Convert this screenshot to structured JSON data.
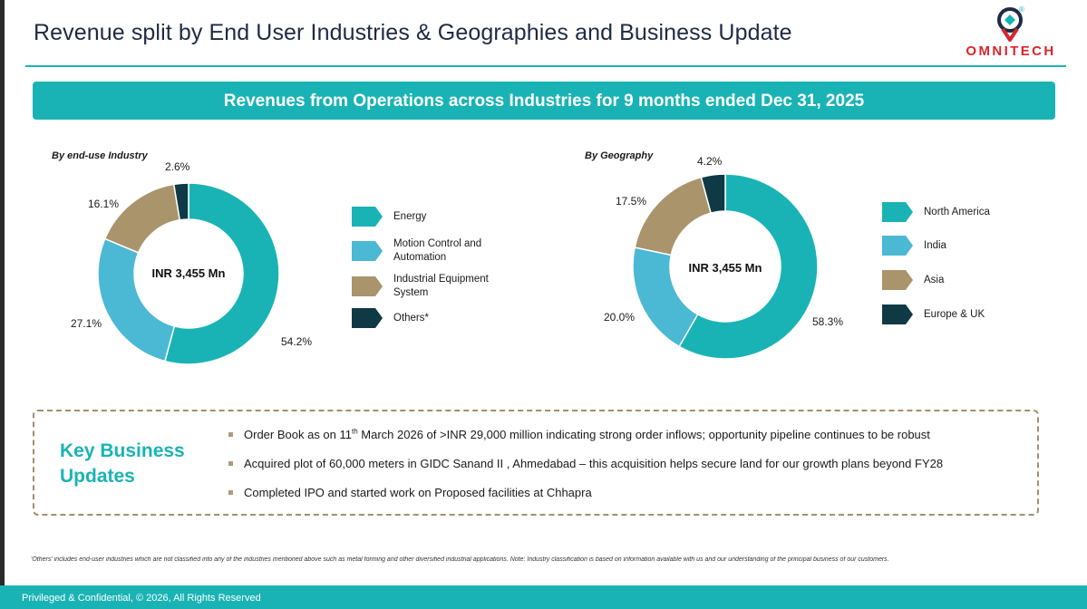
{
  "page": {
    "title": "Revenue split by End User Industries & Geographies and Business Update",
    "banner": "Revenues from Operations across Industries for 9 months ended Dec 31, 2025"
  },
  "logo": {
    "wordmark": "OMNITECH",
    "registered": "®"
  },
  "colors": {
    "teal": "#1ab3b5",
    "light_blue": "#4bb8d4",
    "tan": "#a9946c",
    "dark_navy": "#0f3a45",
    "bullet": "#b09a7a",
    "title_text": "#1f2a44",
    "footer_text": "#ffffff"
  },
  "chart_data": [
    {
      "type": "pie",
      "variant": "donut",
      "title": "By end-use Industry",
      "center_label": "INR 3,455 Mn",
      "categories": [
        "Energy",
        "Motion Control and Automation",
        "Industrial Equipment System",
        "Others*"
      ],
      "values": [
        54.2,
        27.1,
        16.1,
        2.6
      ],
      "labels": [
        "54.2%",
        "27.1%",
        "16.1%",
        "2.6%"
      ],
      "colors": [
        "#1ab3b5",
        "#4bb8d4",
        "#a9946c",
        "#0f3a45"
      ]
    },
    {
      "type": "pie",
      "variant": "donut",
      "title": "By Geography",
      "center_label": "INR 3,455 Mn",
      "categories": [
        "North America",
        "India",
        "Asia",
        "Europe & UK"
      ],
      "values": [
        58.3,
        20.0,
        17.5,
        4.2
      ],
      "labels": [
        "58.3%",
        "20.0%",
        "17.5%",
        "4.2%"
      ],
      "colors": [
        "#1ab3b5",
        "#4bb8d4",
        "#a9946c",
        "#0f3a45"
      ]
    }
  ],
  "updates": {
    "title_line1": "Key Business",
    "title_line2": "Updates",
    "item1_pre": "Order Book as on 11",
    "item1_sup": "th",
    "item1_post": " March 2026 of >INR 29,000 million indicating strong order inflows; opportunity pipeline continues to be robust",
    "item2": "Acquired plot of 60,000 meters in GIDC Sanand II , Ahmedabad – this acquisition helps secure land for our growth plans beyond FY28",
    "item3": "Completed IPO and started work on Proposed facilities at Chhapra"
  },
  "footnote": "'Others' includes end-user industries which are not classified into any of the industries mentioned above such as metal forming and other diversified industrial applications. Note: Industry classification is based on information available with us and our understanding of the principal business of our customers.",
  "footer": "Privileged & Confidential, © 2026, All Rights Reserved"
}
